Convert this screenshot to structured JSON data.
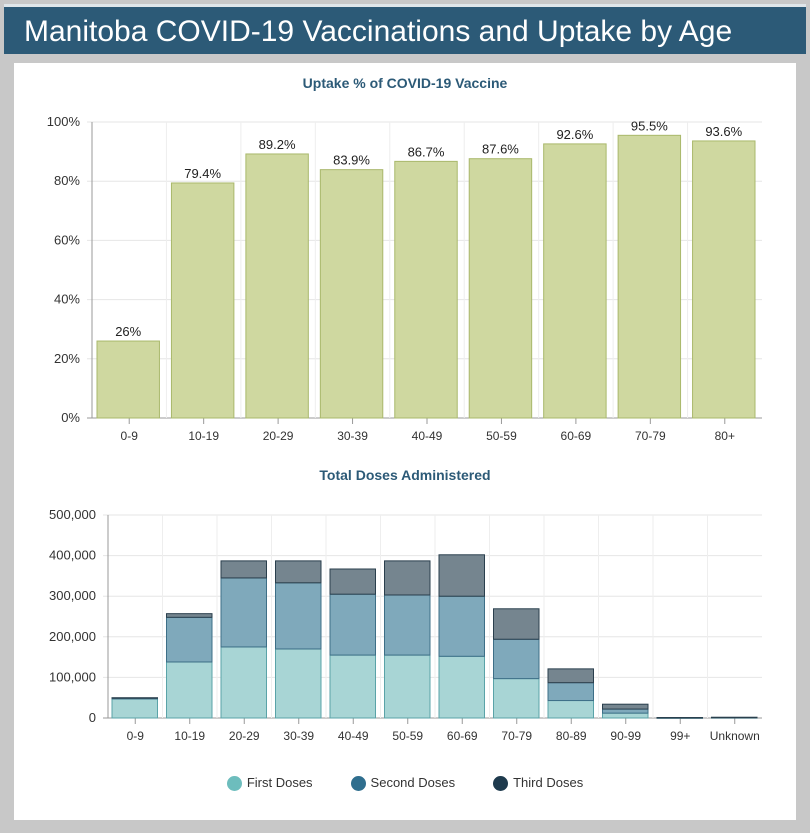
{
  "header": {
    "title": "Manitoba COVID-19 Vaccinations and Uptake by Age"
  },
  "chart_data": [
    {
      "type": "bar",
      "title": "Uptake % of COVID-19 Vaccine",
      "categories": [
        "0-9",
        "10-19",
        "20-29",
        "30-39",
        "40-49",
        "50-59",
        "60-69",
        "70-79",
        "80+"
      ],
      "values": [
        26,
        79.4,
        89.2,
        83.9,
        86.7,
        87.6,
        92.6,
        95.5,
        93.6
      ],
      "labels": [
        "26%",
        "79.4%",
        "89.2%",
        "83.9%",
        "86.7%",
        "87.6%",
        "92.6%",
        "95.5%",
        "93.6%"
      ],
      "yticks": [
        "0%",
        "20%",
        "40%",
        "60%",
        "80%",
        "100%"
      ],
      "ylim": [
        0,
        100
      ],
      "color": "#cfd8a0"
    },
    {
      "type": "bar",
      "stacked": true,
      "title": "Total Doses Administered",
      "categories": [
        "0-9",
        "10-19",
        "20-29",
        "30-39",
        "40-49",
        "50-59",
        "60-69",
        "70-79",
        "80-89",
        "90-99",
        "99+",
        "Unknown"
      ],
      "series": [
        {
          "name": "First Doses",
          "color": "#a8d5d5",
          "values": [
            47000,
            138000,
            175000,
            170000,
            155000,
            155000,
            152000,
            97000,
            43000,
            12000,
            500,
            1000
          ]
        },
        {
          "name": "Second Doses",
          "color": "#7fa9bb",
          "values": [
            2000,
            110000,
            170000,
            163000,
            150000,
            148000,
            148000,
            97000,
            44000,
            10000,
            400,
            500
          ]
        },
        {
          "name": "Third Doses",
          "color": "#75858f",
          "values": [
            1000,
            9000,
            42000,
            54000,
            62000,
            84000,
            102000,
            75000,
            34000,
            12000,
            300,
            300
          ]
        }
      ],
      "legend_colors": [
        "#6dbdbd",
        "#2f6e8e",
        "#1e3a4d"
      ],
      "yticks": [
        "0",
        "100,000",
        "200,000",
        "300,000",
        "400,000",
        "500,000"
      ],
      "ylim": [
        0,
        500000
      ],
      "legend": "bottom"
    }
  ]
}
